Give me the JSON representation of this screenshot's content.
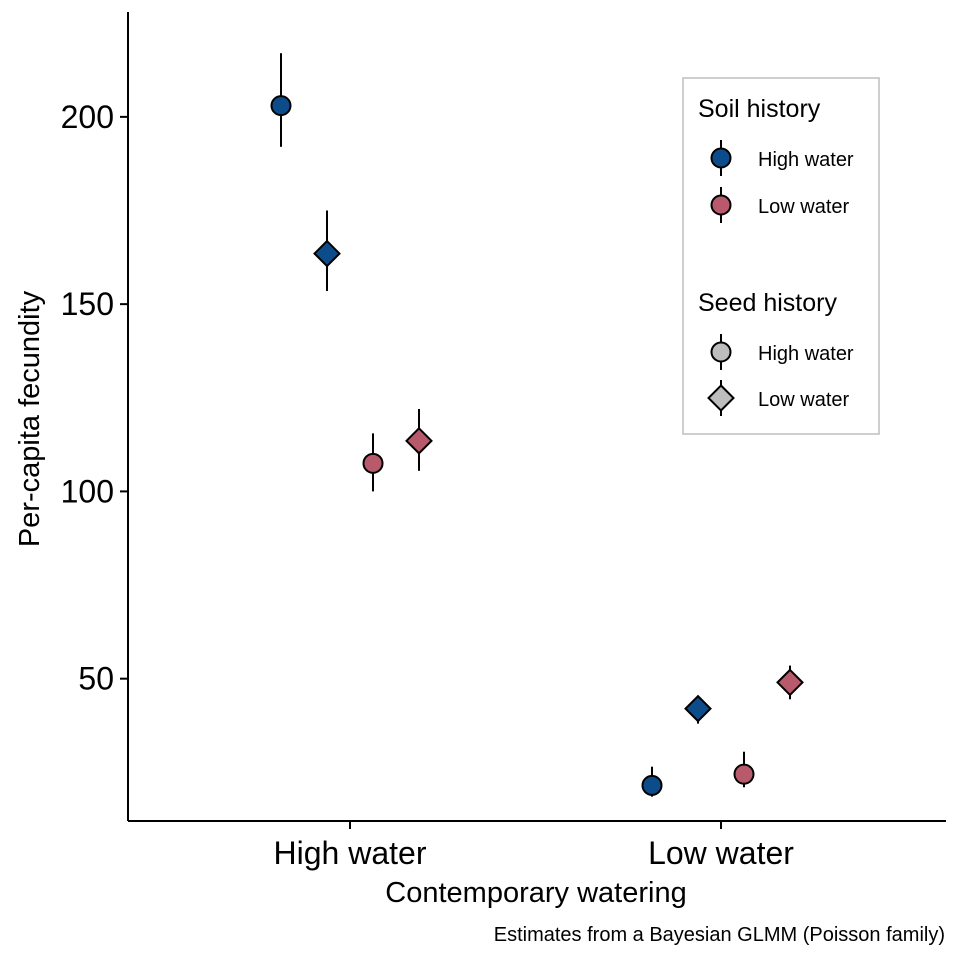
{
  "chart_data": {
    "type": "scatter",
    "title": "",
    "xlabel": "Contemporary watering",
    "ylabel": "Per-capita fecundity",
    "caption": "Estimates from a Bayesian GLMM (Poisson family)",
    "categories": [
      "High water",
      "Low water"
    ],
    "yticks": [
      50,
      100,
      150,
      200
    ],
    "ylim": [
      12,
      228
    ],
    "grid": false,
    "legend_position": "top-right",
    "colors": {
      "soil_high": "#0d4c8a",
      "soil_low": "#b85a6c",
      "neutral": "#bdbdbd",
      "outline": "#000000"
    },
    "series": [
      {
        "soil": "High water",
        "seed": "High water",
        "shape": "circle",
        "points": [
          {
            "category": "High water",
            "y": 203,
            "ymin": 192,
            "ymax": 217
          },
          {
            "category": "Low water",
            "y": 21.5,
            "ymin": 18.5,
            "ymax": 26.5
          }
        ]
      },
      {
        "soil": "High water",
        "seed": "Low water",
        "shape": "diamond",
        "points": [
          {
            "category": "High water",
            "y": 163.5,
            "ymin": 153.5,
            "ymax": 175
          },
          {
            "category": "Low water",
            "y": 42,
            "ymin": 38,
            "ymax": 45.5
          }
        ]
      },
      {
        "soil": "Low water",
        "seed": "High water",
        "shape": "circle",
        "points": [
          {
            "category": "High water",
            "y": 107.5,
            "ymin": 100,
            "ymax": 115.5
          },
          {
            "category": "Low water",
            "y": 24.5,
            "ymin": 21,
            "ymax": 30.5
          }
        ]
      },
      {
        "soil": "Low water",
        "seed": "Low water",
        "shape": "diamond",
        "points": [
          {
            "category": "High water",
            "y": 113.5,
            "ymin": 105.5,
            "ymax": 122
          },
          {
            "category": "Low water",
            "y": 49,
            "ymin": 44.5,
            "ymax": 53.5
          }
        ]
      }
    ],
    "legend": {
      "soil": {
        "title": "Soil history",
        "items": [
          "High water",
          "Low water"
        ]
      },
      "seed": {
        "title": "Seed history",
        "items": [
          "High water",
          "Low water"
        ]
      }
    }
  }
}
